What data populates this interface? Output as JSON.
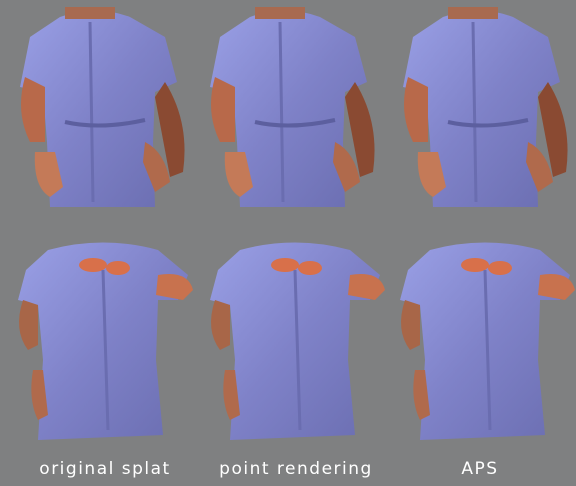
{
  "figure": {
    "captions": [
      "original splat",
      "point rendering",
      "APS"
    ]
  }
}
